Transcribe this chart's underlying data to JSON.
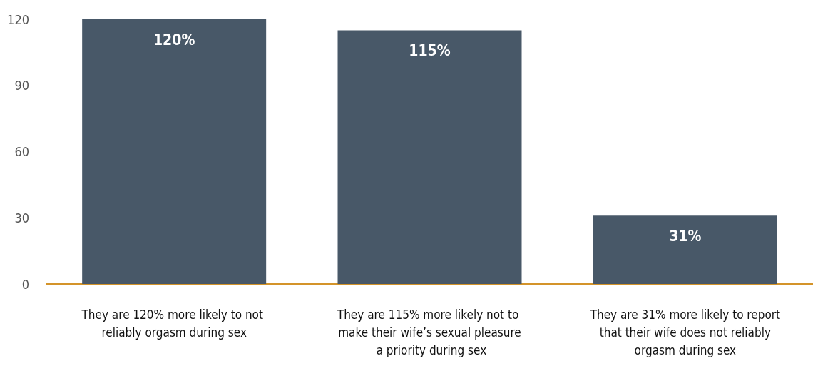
{
  "chart_data": {
    "type": "bar",
    "categories": [
      "They are 120% more likely to not reliably orgasm during sex",
      "They are 115% more likely not to make their wife’s sexual pleasure a priority during sex",
      "They are 31% more likely to report that their wife does not reliably orgasm during sex"
    ],
    "values": [
      120,
      115,
      31
    ],
    "color": "#485868",
    "value_labels": [
      "120%",
      "115%",
      "31%"
    ],
    "ylim": [
      0,
      120
    ],
    "yticks": [
      0,
      30,
      60,
      90,
      120
    ],
    "grid": false
  }
}
